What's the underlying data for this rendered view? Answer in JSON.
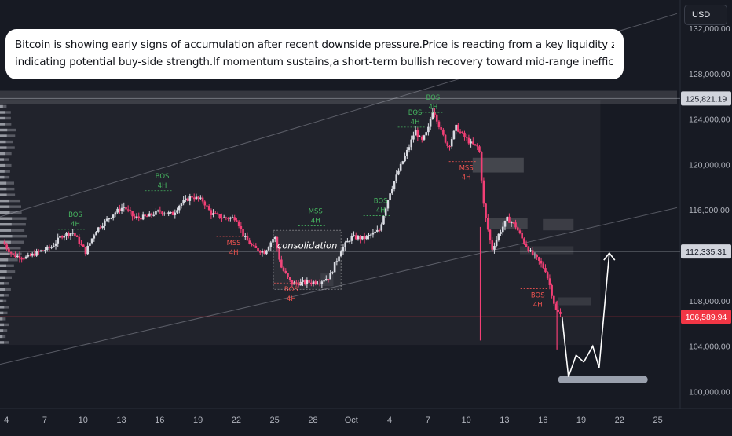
{
  "chart_data": {
    "type": "candlestick",
    "title": "",
    "xlabel": "",
    "ylabel": "",
    "currency_button": "USD",
    "annotation_text": [
      "Bitcoin is showing early signs of accumulation after recent downside pressure.Price is reacting from a key liquidity zone,",
      "indicating potential buy-side strength.If momentum sustains,a short-term bullish recovery toward mid-range inefficiencies is expected."
    ],
    "ylim": [
      98500,
      134500
    ],
    "y_ticks": [
      "132,000.00",
      "128,000.00",
      "124,000.00",
      "120,000.00",
      "116,000.00",
      "108,000.00",
      "104,000.00",
      "100,000.00"
    ],
    "y_tick_values": [
      132000,
      128000,
      124000,
      120000,
      116000,
      108000,
      104000,
      100000
    ],
    "x_ticks": [
      "4",
      "7",
      "10",
      "13",
      "16",
      "19",
      "22",
      "25",
      "28",
      "Oct",
      "4",
      "7",
      "10",
      "13",
      "16",
      "19",
      "22",
      "25"
    ],
    "x_tick_days": [
      4,
      7,
      10,
      13,
      16,
      19,
      22,
      25,
      28,
      31,
      34,
      37,
      40,
      43,
      46,
      49,
      52,
      55
    ],
    "xlim_days": [
      3.5,
      56.5
    ],
    "price_labels": [
      {
        "text": "125,821.19",
        "value": 125821.19,
        "color": "#d1d4dc",
        "text_color": "#131722"
      },
      {
        "text": "112,335.31",
        "value": 112335.31,
        "color": "#d1d4dc",
        "text_color": "#131722"
      },
      {
        "text": "106,589.94",
        "value": 106589.94,
        "color": "#f23645",
        "text_color": "#ffffff"
      }
    ],
    "colors": {
      "up": "#d9dbe2",
      "down": "#f23f75",
      "bos_up": "#46b35f",
      "bos_down": "#ef5350",
      "box": "#40444f"
    },
    "price_path": [
      {
        "day": 3.7,
        "price": 113200
      },
      {
        "day": 4.5,
        "price": 112000
      },
      {
        "day": 5.6,
        "price": 111800
      },
      {
        "day": 6.5,
        "price": 112300
      },
      {
        "day": 7.5,
        "price": 112700
      },
      {
        "day": 8.4,
        "price": 113800
      },
      {
        "day": 9.2,
        "price": 114000
      },
      {
        "day": 10.2,
        "price": 112300
      },
      {
        "day": 11.0,
        "price": 114200
      },
      {
        "day": 12.4,
        "price": 115700
      },
      {
        "day": 13.2,
        "price": 116300
      },
      {
        "day": 14.0,
        "price": 115300
      },
      {
        "day": 15.0,
        "price": 115400
      },
      {
        "day": 16.0,
        "price": 115900
      },
      {
        "day": 17.0,
        "price": 115600
      },
      {
        "day": 17.5,
        "price": 116400
      },
      {
        "day": 18.5,
        "price": 117200
      },
      {
        "day": 19.4,
        "price": 116800
      },
      {
        "day": 20.0,
        "price": 115700
      },
      {
        "day": 21.0,
        "price": 115300
      },
      {
        "day": 22.0,
        "price": 115300
      },
      {
        "day": 22.6,
        "price": 113600
      },
      {
        "day": 23.4,
        "price": 112600
      },
      {
        "day": 24.2,
        "price": 112300
      },
      {
        "day": 25.0,
        "price": 113700
      },
      {
        "day": 25.5,
        "price": 111000
      },
      {
        "day": 26.3,
        "price": 109500
      },
      {
        "day": 27.4,
        "price": 109600
      },
      {
        "day": 28.5,
        "price": 109700
      },
      {
        "day": 29.3,
        "price": 110100
      },
      {
        "day": 30.2,
        "price": 112500
      },
      {
        "day": 31.0,
        "price": 113600
      },
      {
        "day": 32.0,
        "price": 113500
      },
      {
        "day": 33.2,
        "price": 114200
      },
      {
        "day": 34.0,
        "price": 117500
      },
      {
        "day": 34.8,
        "price": 119700
      },
      {
        "day": 35.5,
        "price": 121500
      },
      {
        "day": 36.0,
        "price": 123000
      },
      {
        "day": 36.5,
        "price": 122000
      },
      {
        "day": 37.0,
        "price": 123000
      },
      {
        "day": 37.4,
        "price": 125000
      },
      {
        "day": 38.0,
        "price": 123000
      },
      {
        "day": 38.6,
        "price": 121500
      },
      {
        "day": 39.2,
        "price": 123300
      },
      {
        "day": 39.8,
        "price": 122500
      },
      {
        "day": 40.4,
        "price": 121800
      },
      {
        "day": 41.0,
        "price": 121500
      },
      {
        "day": 41.4,
        "price": 116000
      },
      {
        "day": 42.0,
        "price": 112500
      },
      {
        "day": 42.6,
        "price": 114000
      },
      {
        "day": 43.2,
        "price": 115200
      },
      {
        "day": 43.8,
        "price": 114700
      },
      {
        "day": 44.4,
        "price": 113400
      },
      {
        "day": 45.0,
        "price": 112300
      },
      {
        "day": 45.6,
        "price": 111600
      },
      {
        "day": 46.2,
        "price": 110700
      },
      {
        "day": 46.6,
        "price": 109100
      },
      {
        "day": 47.0,
        "price": 107200
      },
      {
        "day": 47.5,
        "price": 106600
      }
    ],
    "wicks": [
      {
        "day": 41.1,
        "high": 114500,
        "low": 104500
      },
      {
        "day": 47.1,
        "high": 108000,
        "low": 103700
      }
    ],
    "projection": [
      {
        "day": 47.5,
        "price": 106600
      },
      {
        "day": 48.0,
        "price": 101300
      },
      {
        "day": 48.6,
        "price": 103200
      },
      {
        "day": 49.2,
        "price": 102600
      },
      {
        "day": 49.9,
        "price": 104000
      },
      {
        "day": 50.4,
        "price": 102100
      },
      {
        "day": 51.2,
        "price": 112200
      }
    ],
    "channel": {
      "upper": [
        {
          "day": 3.5,
          "price": 115400
        },
        {
          "day": 56.5,
          "price": 133300
        }
      ],
      "lower": [
        {
          "day": 3.5,
          "price": 102400
        },
        {
          "day": 56.5,
          "price": 116200
        }
      ]
    },
    "zones": [
      {
        "d0": 3.5,
        "d1": 50.5,
        "p0": 104100,
        "p1": 125700,
        "fill": "rgba(255,255,255,0.045)"
      },
      {
        "d0": 3.5,
        "d1": 56.5,
        "p0": 125300,
        "p1": 126500,
        "fill": "rgba(255,255,255,0.13)"
      },
      {
        "d0": 40.5,
        "d1": 44.5,
        "p0": 119300,
        "p1": 120600,
        "fill": "rgba(255,255,255,0.16)"
      },
      {
        "d0": 41.6,
        "d1": 44.8,
        "p0": 114300,
        "p1": 115300,
        "fill": "rgba(255,255,255,0.14)"
      },
      {
        "d0": 46.0,
        "d1": 48.4,
        "p0": 114200,
        "p1": 115200,
        "fill": "rgba(255,255,255,0.12)"
      },
      {
        "d0": 44.2,
        "d1": 48.4,
        "p0": 112100,
        "p1": 112800,
        "fill": "rgba(255,255,255,0.08)"
      },
      {
        "d0": 47.2,
        "d1": 49.8,
        "p0": 107600,
        "p1": 108300,
        "fill": "rgba(255,255,255,0.10)"
      },
      {
        "d0": 28.6,
        "d1": 29.6,
        "p0": 109300,
        "p1": 110400,
        "fill": "rgba(255,255,255,0.07)"
      }
    ],
    "target_bar": {
      "d0": 47.2,
      "d1": 54.2,
      "price": 101050
    },
    "structure_labels": [
      {
        "line1": "BOS",
        "line2": "4H",
        "day": 9.4,
        "price": 115400,
        "color": "#46b35f",
        "dir": "up"
      },
      {
        "line1": "BOS",
        "line2": "4H",
        "day": 16.2,
        "price": 118800,
        "color": "#46b35f",
        "dir": "up"
      },
      {
        "line1": "MSS",
        "line2": "4H",
        "day": 21.8,
        "price": 112900,
        "color": "#ef5350",
        "dir": "down"
      },
      {
        "line1": "MSS",
        "line2": "4H",
        "day": 28.2,
        "price": 115700,
        "color": "#46b35f",
        "dir": "up"
      },
      {
        "line1": "BOS",
        "line2": "4H",
        "day": 26.3,
        "price": 108800,
        "color": "#ef5350",
        "dir": "down"
      },
      {
        "line1": "BOS",
        "line2": "4H",
        "day": 33.3,
        "price": 116600,
        "color": "#46b35f",
        "dir": "up"
      },
      {
        "line1": "BOS",
        "line2": "4H",
        "day": 36.0,
        "price": 124400,
        "color": "#46b35f",
        "dir": "up"
      },
      {
        "line1": "BOS",
        "line2": "4H",
        "day": 37.4,
        "price": 125700,
        "color": "#46b35f",
        "dir": "up"
      },
      {
        "line1": "MSS",
        "line2": "4H",
        "day": 40.0,
        "price": 119500,
        "color": "#ef5350",
        "dir": "down"
      },
      {
        "line1": "BOS",
        "line2": "4H",
        "day": 45.6,
        "price": 108300,
        "color": "#ef5350",
        "dir": "down"
      }
    ],
    "consolidation_label": "consolidation"
  }
}
